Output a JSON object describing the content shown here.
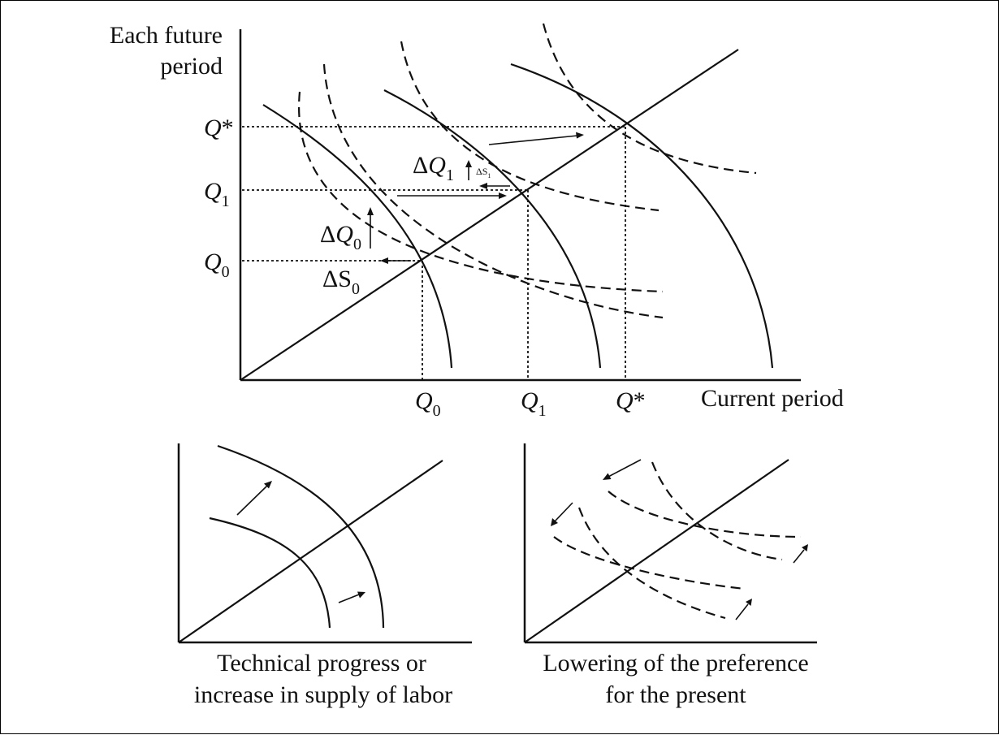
{
  "main": {
    "y_axis_label": [
      "Each future",
      "period"
    ],
    "x_axis_label": "Current period",
    "y_levels": [
      {
        "letter": "Q",
        "suffix": "*",
        "sub": ""
      },
      {
        "letter": "Q",
        "suffix": "",
        "sub": "1"
      },
      {
        "letter": "Q",
        "suffix": "",
        "sub": "0"
      }
    ],
    "x_levels": [
      {
        "letter": "Q",
        "suffix": "",
        "sub": "0"
      },
      {
        "letter": "Q",
        "suffix": "",
        "sub": "1"
      },
      {
        "letter": "Q",
        "suffix": "*",
        "sub": ""
      }
    ],
    "annotations": {
      "dq1": {
        "delta": "Δ",
        "letter": "Q",
        "sub": "1"
      },
      "ds1": {
        "delta": "ΔS",
        "sub": "1"
      },
      "dq0": {
        "delta": "Δ",
        "letter": "Q",
        "sub": "0"
      },
      "ds0": {
        "delta": "ΔS",
        "sub": "0"
      }
    }
  },
  "panels": {
    "left_caption": [
      "Technical progress or",
      "increase in supply of labor"
    ],
    "right_caption": [
      "Lowering of the preference",
      "for the present"
    ]
  }
}
